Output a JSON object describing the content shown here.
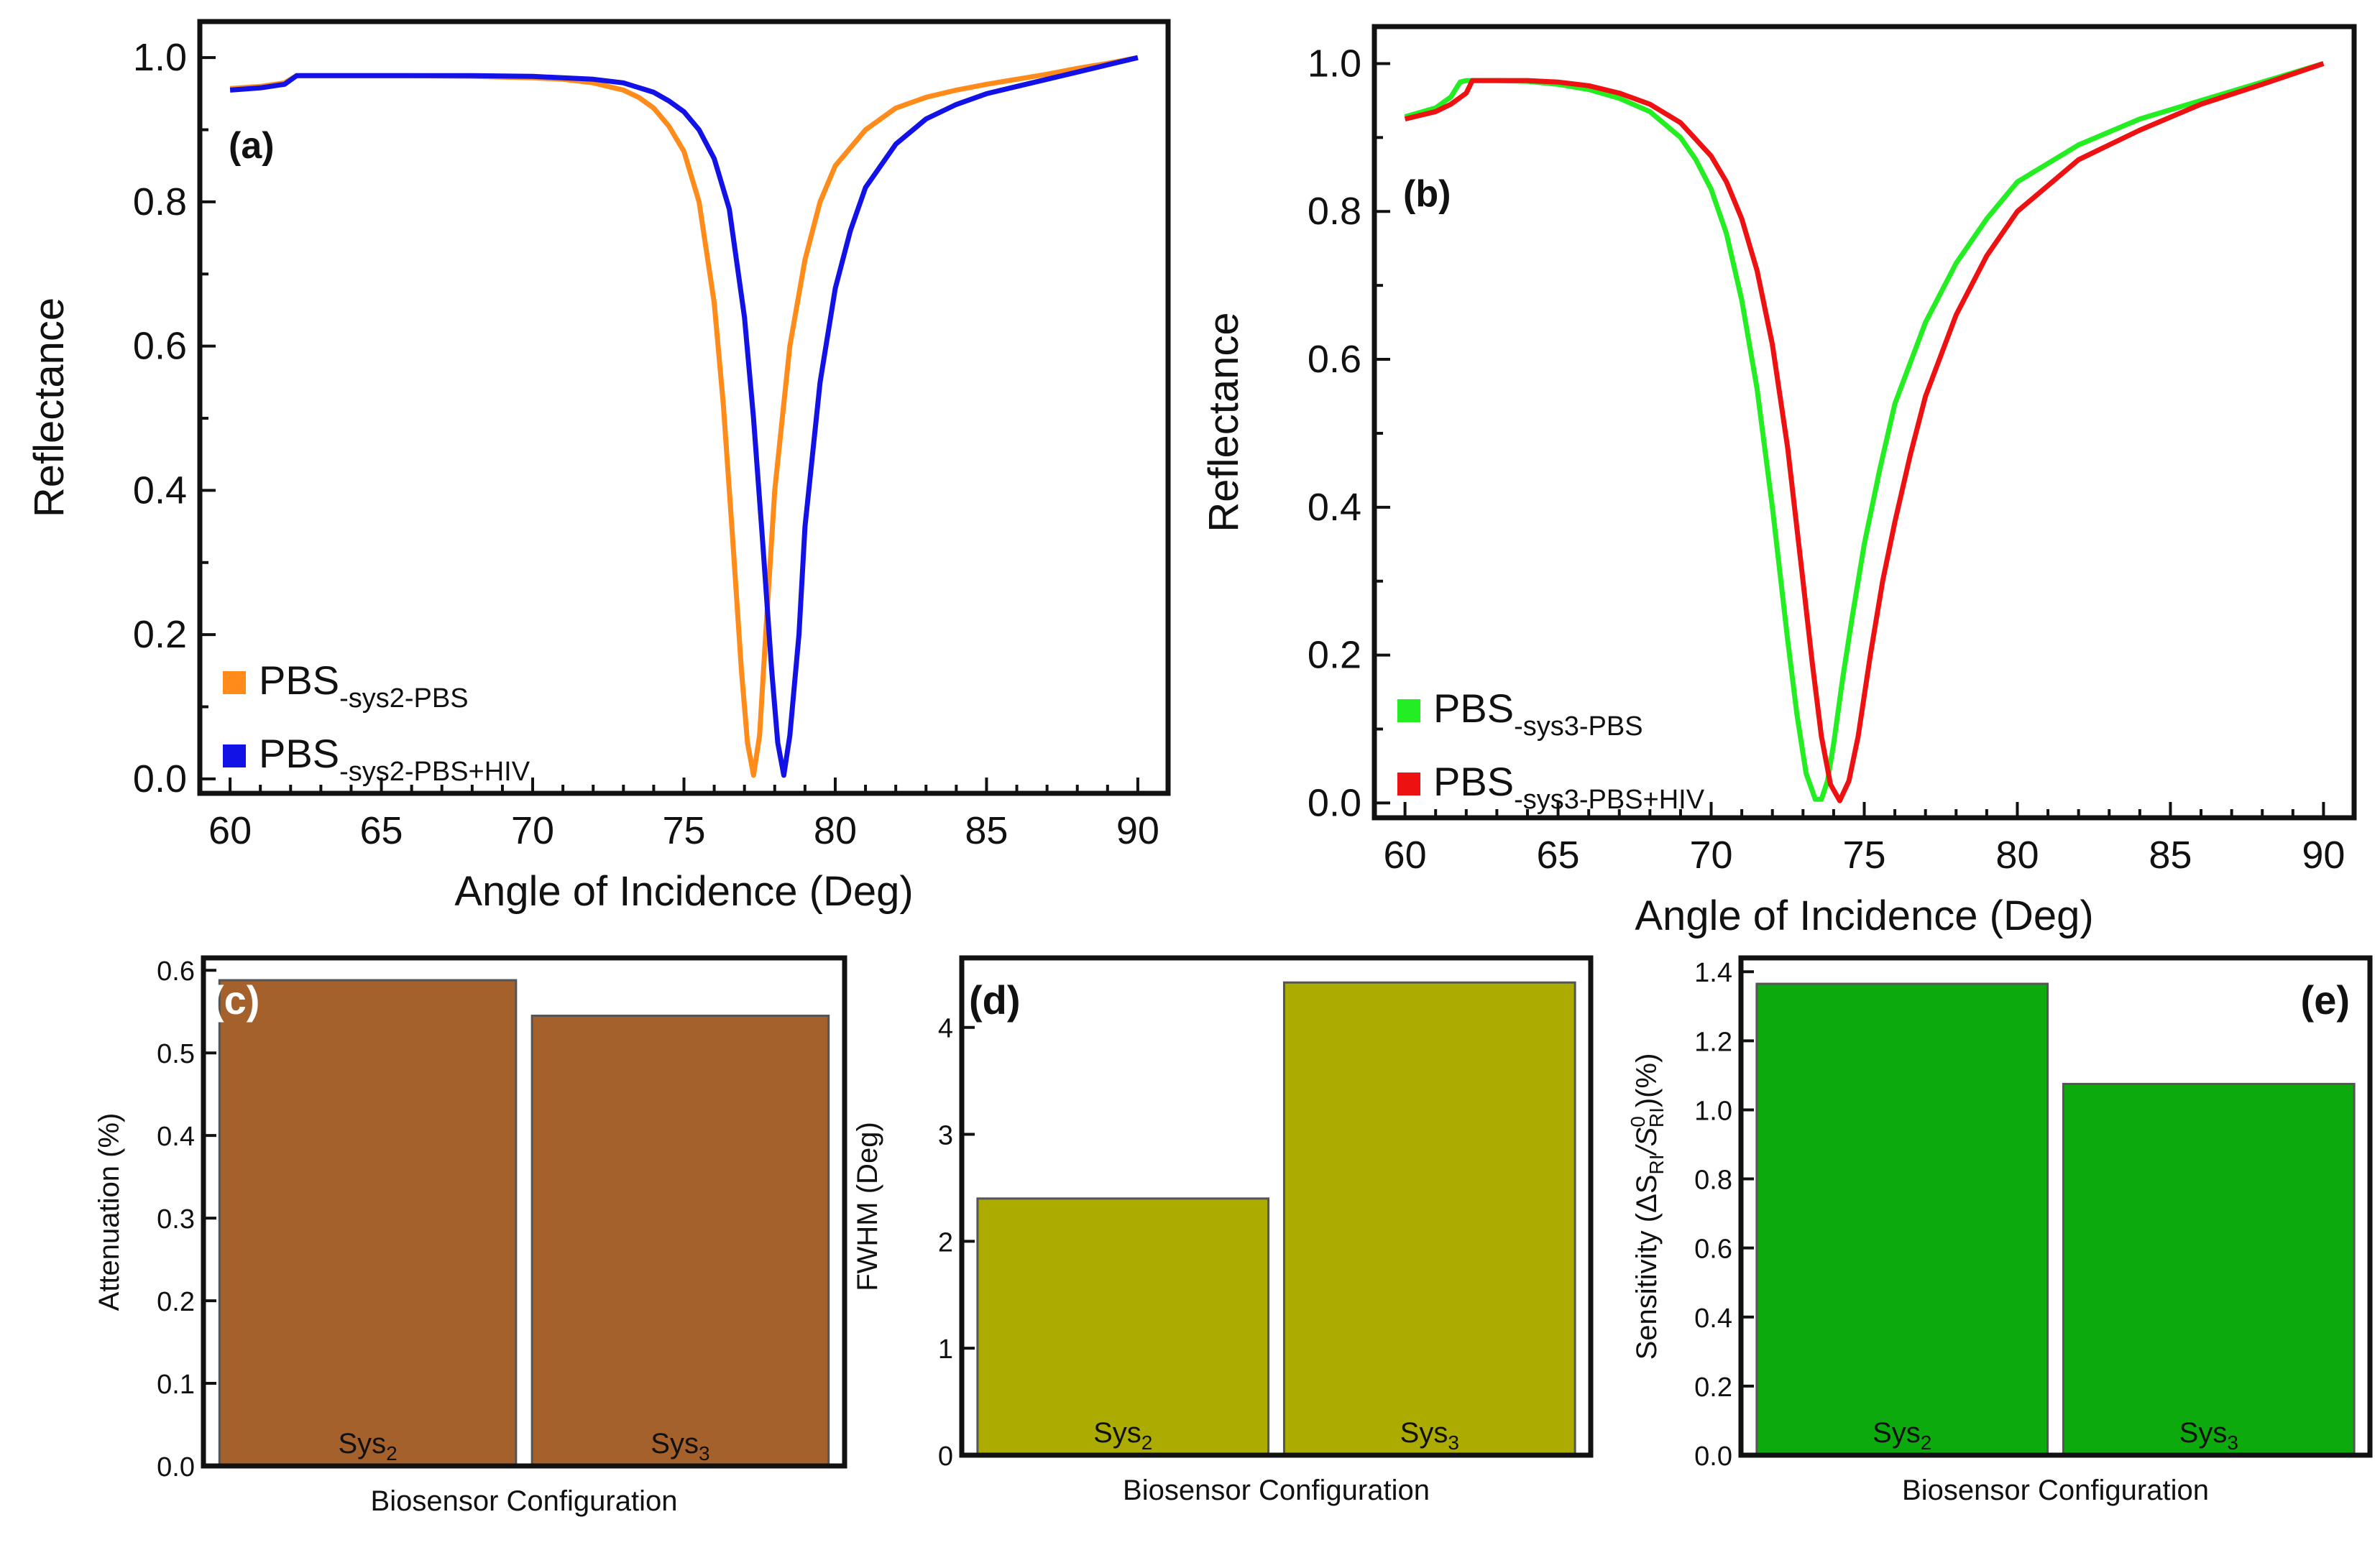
{
  "chart_data": [
    {
      "id": "a",
      "type": "line",
      "panel_label": "(a)",
      "xlabel": "Angle of Incidence (Deg)",
      "ylabel": "Reflectance",
      "xlim": [
        59,
        91
      ],
      "ylim": [
        -0.02,
        1.05
      ],
      "xticks": [
        60,
        65,
        70,
        75,
        80,
        85,
        90
      ],
      "yticks": [
        0.0,
        0.2,
        0.4,
        0.6,
        0.8,
        1.0
      ],
      "xtick_labels": [
        "60",
        "65",
        "70",
        "75",
        "80",
        "85",
        "90"
      ],
      "ytick_labels": [
        "0.0",
        "0.2",
        "0.4",
        "0.6",
        "0.8",
        "1.0"
      ],
      "legend_position": "bottom-left",
      "series": [
        {
          "name": "PBS",
          "subscript": "-sys2-PBS",
          "color": "#ff8c1a",
          "x": [
            60,
            61,
            61.8,
            62.2,
            64,
            66,
            68,
            70,
            71,
            72,
            73,
            73.5,
            74,
            74.5,
            75,
            75.5,
            76,
            76.3,
            76.6,
            76.9,
            77.1,
            77.3,
            77.5,
            77.7,
            78,
            78.5,
            79,
            79.5,
            80,
            81,
            82,
            83,
            84,
            85,
            86,
            87,
            88,
            89,
            90
          ],
          "y": [
            0.957,
            0.96,
            0.965,
            0.975,
            0.975,
            0.975,
            0.974,
            0.972,
            0.97,
            0.965,
            0.955,
            0.945,
            0.93,
            0.905,
            0.87,
            0.8,
            0.66,
            0.52,
            0.34,
            0.15,
            0.05,
            0.005,
            0.06,
            0.2,
            0.4,
            0.6,
            0.72,
            0.8,
            0.85,
            0.9,
            0.93,
            0.945,
            0.955,
            0.963,
            0.97,
            0.977,
            0.985,
            0.992,
            1.0
          ]
        },
        {
          "name": "PBS",
          "subscript": "-sys2-PBS+HIV",
          "color": "#1212e6",
          "x": [
            60,
            61,
            61.8,
            62.2,
            64,
            66,
            68,
            70,
            71,
            72,
            73,
            74,
            74.5,
            75,
            75.5,
            76,
            76.5,
            77,
            77.3,
            77.6,
            77.9,
            78.1,
            78.3,
            78.5,
            78.8,
            79,
            79.5,
            80,
            80.5,
            81,
            82,
            83,
            84,
            85,
            86,
            87,
            88,
            89,
            90
          ],
          "y": [
            0.955,
            0.958,
            0.963,
            0.975,
            0.975,
            0.975,
            0.975,
            0.974,
            0.972,
            0.97,
            0.965,
            0.952,
            0.94,
            0.925,
            0.9,
            0.86,
            0.79,
            0.64,
            0.5,
            0.33,
            0.15,
            0.05,
            0.005,
            0.06,
            0.2,
            0.35,
            0.55,
            0.68,
            0.76,
            0.82,
            0.88,
            0.915,
            0.935,
            0.95,
            0.96,
            0.97,
            0.98,
            0.99,
            1.0
          ]
        }
      ]
    },
    {
      "id": "b",
      "type": "line",
      "panel_label": "(b)",
      "xlabel": "Angle of Incidence (Deg)",
      "ylabel": "Reflectance",
      "xlim": [
        59,
        91
      ],
      "ylim": [
        -0.02,
        1.05
      ],
      "xticks": [
        60,
        65,
        70,
        75,
        80,
        85,
        90
      ],
      "yticks": [
        0.0,
        0.2,
        0.4,
        0.6,
        0.8,
        1.0
      ],
      "xtick_labels": [
        "60",
        "65",
        "70",
        "75",
        "80",
        "85",
        "90"
      ],
      "ytick_labels": [
        "0.0",
        "0.2",
        "0.4",
        "0.6",
        "0.8",
        "1.0"
      ],
      "legend_position": "bottom-left",
      "series": [
        {
          "name": "PBS",
          "subscript": "-sys3-PBS",
          "color": "#22ee22",
          "x": [
            60,
            61,
            61.5,
            61.8,
            62,
            63,
            64,
            65,
            66,
            67,
            68,
            69,
            69.5,
            70,
            70.5,
            71,
            71.5,
            72,
            72.5,
            72.8,
            73.1,
            73.4,
            73.6,
            73.8,
            74,
            74.3,
            74.6,
            75,
            75.5,
            76,
            77,
            78,
            79,
            80,
            82,
            84,
            86,
            88,
            90
          ],
          "y": [
            0.928,
            0.94,
            0.955,
            0.975,
            0.977,
            0.977,
            0.976,
            0.972,
            0.965,
            0.953,
            0.935,
            0.9,
            0.87,
            0.83,
            0.77,
            0.68,
            0.56,
            0.4,
            0.22,
            0.12,
            0.04,
            0.005,
            0.005,
            0.03,
            0.08,
            0.17,
            0.25,
            0.35,
            0.45,
            0.54,
            0.65,
            0.73,
            0.79,
            0.84,
            0.89,
            0.925,
            0.95,
            0.975,
            1.0
          ]
        },
        {
          "name": "PBS",
          "subscript": "-sys3-PBS+HIV",
          "color": "#ee1111",
          "x": [
            60,
            61,
            61.5,
            62,
            62.2,
            63,
            64,
            65,
            66,
            67,
            68,
            69,
            70,
            70.5,
            71,
            71.5,
            72,
            72.5,
            73,
            73.3,
            73.6,
            73.9,
            74.2,
            74.5,
            74.8,
            75.2,
            75.6,
            76,
            76.5,
            77,
            78,
            79,
            80,
            82,
            84,
            86,
            88,
            90
          ],
          "y": [
            0.925,
            0.935,
            0.945,
            0.96,
            0.977,
            0.977,
            0.977,
            0.975,
            0.97,
            0.96,
            0.945,
            0.92,
            0.875,
            0.84,
            0.79,
            0.72,
            0.62,
            0.48,
            0.3,
            0.19,
            0.09,
            0.025,
            0.003,
            0.03,
            0.09,
            0.2,
            0.3,
            0.38,
            0.47,
            0.55,
            0.66,
            0.74,
            0.8,
            0.87,
            0.91,
            0.945,
            0.972,
            1.0
          ]
        }
      ]
    },
    {
      "id": "c",
      "type": "bar",
      "panel_label": "(c)",
      "xlabel": "Biosensor Configuration",
      "ylabel": "Attenuation (%)",
      "ylim": [
        0,
        0.615
      ],
      "yticks": [
        0.0,
        0.1,
        0.2,
        0.3,
        0.4,
        0.5,
        0.6
      ],
      "ytick_labels": [
        "0.0",
        "0.1",
        "0.2",
        "0.3",
        "0.4",
        "0.5",
        "0.6"
      ],
      "color": "#a5612c",
      "panel_label_color": "#ffffff",
      "panel_label_position": "top-left",
      "categories": [
        {
          "base": "Sys",
          "sub": "2"
        },
        {
          "base": "Sys",
          "sub": "3"
        }
      ],
      "values": [
        0.588,
        0.545
      ]
    },
    {
      "id": "d",
      "type": "bar",
      "panel_label": "(d)",
      "xlabel": "Biosensor Configuration",
      "ylabel": "FWHM (Deg)",
      "ylim": [
        0,
        4.65
      ],
      "yticks": [
        0,
        1,
        2,
        3,
        4
      ],
      "ytick_labels": [
        "0",
        "1",
        "2",
        "3",
        "4"
      ],
      "color": "#abab00",
      "panel_label_color": "#111111",
      "panel_label_position": "top-left",
      "categories": [
        {
          "base": "Sys",
          "sub": "2"
        },
        {
          "base": "Sys",
          "sub": "3"
        }
      ],
      "values": [
        2.4,
        4.42
      ]
    },
    {
      "id": "e",
      "type": "bar",
      "panel_label": "(e)",
      "xlabel": "Biosensor Configuration",
      "ylabel": "Sensitivity (ΔS_RI/S⁰_RI)(%)",
      "ylabel_parts": {
        "pre": "Sensitivity (ΔS",
        "sub1": "RI",
        "mid": "/S",
        "sup": "0",
        "sub2": "RI",
        "post": ")(%)"
      },
      "ylim": [
        0,
        1.44
      ],
      "yticks": [
        0.0,
        0.2,
        0.4,
        0.6,
        0.8,
        1.0,
        1.2,
        1.4
      ],
      "ytick_labels": [
        "0.0",
        "0.2",
        "0.4",
        "0.6",
        "0.8",
        "1.0",
        "1.2",
        "1.4"
      ],
      "color": "#0caa0c",
      "panel_label_color": "#111111",
      "panel_label_position": "top-right",
      "categories": [
        {
          "base": "Sys",
          "sub": "2"
        },
        {
          "base": "Sys",
          "sub": "3"
        }
      ],
      "values": [
        1.365,
        1.075
      ]
    }
  ]
}
